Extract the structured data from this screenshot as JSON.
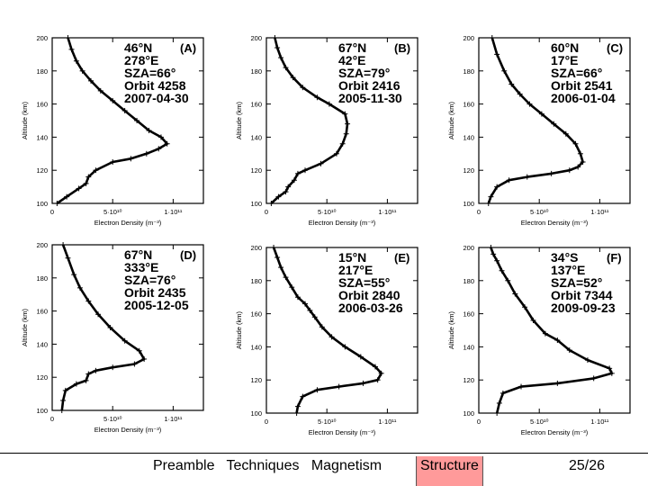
{
  "chart_data": [
    {
      "type": "line",
      "panel_label": "(A)",
      "annotation": [
        "46°N",
        "278°E",
        "SZA=66°",
        "Orbit 4258",
        "2007-04-30"
      ],
      "xlabel": "Electron Density (m⁻³)",
      "ylabel": "Altitude (km)",
      "xlim": [
        0,
        125000000000.0
      ],
      "ylim": [
        100,
        200
      ],
      "xticks": [
        {
          "v": 0,
          "t": "0"
        },
        {
          "v": 50000000000.0,
          "t": "5·10¹⁰"
        },
        {
          "v": 100000000000.0,
          "t": "1·10¹¹"
        }
      ],
      "yticks": [
        100,
        120,
        140,
        160,
        180,
        200
      ],
      "series": [
        {
          "x": [
            4000000000.0,
            12000000000.0,
            22000000000.0,
            28000000000.0,
            30000000000.0,
            36000000000.0,
            50000000000.0,
            65000000000.0,
            78000000000.0,
            88000000000.0,
            95000000000.0,
            90000000000.0,
            80000000000.0,
            70000000000.0,
            60000000000.0,
            50000000000.0,
            40000000000.0,
            32000000000.0,
            25000000000.0,
            20000000000.0,
            16000000000.0,
            13000000000.0
          ],
          "y": [
            100,
            104,
            109,
            112,
            116,
            120,
            125,
            127,
            130,
            133,
            136,
            140,
            144,
            150,
            156,
            162,
            168,
            174,
            180,
            186,
            193,
            200
          ]
        }
      ]
    },
    {
      "type": "line",
      "panel_label": "(B)",
      "annotation": [
        "67°N",
        "42°E",
        "SZA=79°",
        "Orbit 2416",
        "2005-11-30"
      ],
      "xlabel": "Electron Density (m⁻³)",
      "ylabel": "Altitude (km)",
      "xlim": [
        0,
        125000000000.0
      ],
      "ylim": [
        100,
        200
      ],
      "xticks": [
        {
          "v": 0,
          "t": "0"
        },
        {
          "v": 50000000000.0,
          "t": "5·10¹⁰"
        },
        {
          "v": 100000000000.0,
          "t": "1·10¹¹"
        }
      ],
      "yticks": [
        100,
        120,
        140,
        160,
        180,
        200
      ],
      "series": [
        {
          "x": [
            4000000000.0,
            10000000000.0,
            16000000000.0,
            18000000000.0,
            23000000000.0,
            26000000000.0,
            32000000000.0,
            45000000000.0,
            58000000000.0,
            63000000000.0,
            66000000000.0,
            67000000000.0,
            65000000000.0,
            52000000000.0,
            42000000000.0,
            30000000000.0,
            22000000000.0,
            16000000000.0,
            12000000000.0,
            9000000000.0,
            7000000000.0
          ],
          "y": [
            100,
            104,
            107,
            110,
            114,
            118,
            120,
            124,
            130,
            136,
            142,
            148,
            154,
            160,
            164,
            170,
            176,
            182,
            188,
            194,
            200
          ]
        }
      ]
    },
    {
      "type": "line",
      "panel_label": "(C)",
      "annotation": [
        "60°N",
        "17°E",
        "SZA=66°",
        "Orbit 2541",
        "2006-01-04"
      ],
      "xlabel": "Electron Density (m⁻³)",
      "ylabel": "Altitude (km)",
      "xlim": [
        0,
        125000000000.0
      ],
      "ylim": [
        100,
        200
      ],
      "xticks": [
        {
          "v": 0,
          "t": "0"
        },
        {
          "v": 50000000000.0,
          "t": "5·10¹⁰"
        },
        {
          "v": 100000000000.0,
          "t": "1·10¹¹"
        }
      ],
      "yticks": [
        100,
        120,
        140,
        160,
        180,
        200
      ],
      "series": [
        {
          "x": [
            8000000000.0,
            10000000000.0,
            15000000000.0,
            25000000000.0,
            40000000000.0,
            60000000000.0,
            75000000000.0,
            82000000000.0,
            86000000000.0,
            84000000000.0,
            80000000000.0,
            72000000000.0,
            62000000000.0,
            52000000000.0,
            42000000000.0,
            34000000000.0,
            27000000000.0,
            21000000000.0,
            15000000000.0,
            11000000000.0
          ],
          "y": [
            100,
            104,
            110,
            114,
            116,
            118,
            120,
            122,
            125,
            130,
            136,
            142,
            148,
            154,
            160,
            166,
            172,
            180,
            190,
            200
          ]
        }
      ]
    },
    {
      "type": "line",
      "panel_label": "(D)",
      "annotation": [
        "67°N",
        "333°E",
        "SZA=76°",
        "Orbit 2435",
        "2005-12-05"
      ],
      "xlabel": "Electron Density (m⁻³)",
      "ylabel": "Altitude (km)",
      "xlim": [
        0,
        125000000000.0
      ],
      "ylim": [
        100,
        200
      ],
      "xticks": [
        {
          "v": 0,
          "t": "0"
        },
        {
          "v": 50000000000.0,
          "t": "5·10¹⁰"
        },
        {
          "v": 100000000000.0,
          "t": "1·10¹¹"
        }
      ],
      "yticks": [
        100,
        120,
        140,
        160,
        180,
        200
      ],
      "series": [
        {
          "x": [
            8000000000.0,
            9000000000.0,
            11000000000.0,
            20000000000.0,
            28000000000.0,
            30000000000.0,
            36000000000.0,
            50000000000.0,
            68000000000.0,
            76000000000.0,
            72000000000.0,
            60000000000.0,
            48000000000.0,
            38000000000.0,
            30000000000.0,
            23000000000.0,
            18000000000.0,
            13000000000.0,
            9000000000.0
          ],
          "y": [
            100,
            106,
            112,
            116,
            118,
            122,
            124,
            126,
            128,
            131,
            136,
            142,
            150,
            158,
            166,
            174,
            182,
            192,
            200
          ]
        }
      ]
    },
    {
      "type": "line",
      "panel_label": "(E)",
      "annotation": [
        "15°N",
        "217°E",
        "SZA=55°",
        "Orbit 2840",
        "2006-03-26"
      ],
      "xlabel": "Electron Density (m⁻³)",
      "ylabel": "Altitude (km)",
      "xlim": [
        0,
        125000000000.0
      ],
      "ylim": [
        100,
        200
      ],
      "xticks": [
        {
          "v": 0,
          "t": "0"
        },
        {
          "v": 50000000000.0,
          "t": "5·10¹⁰"
        },
        {
          "v": 100000000000.0,
          "t": "1·10¹¹"
        }
      ],
      "yticks": [
        100,
        120,
        140,
        160,
        180,
        200
      ],
      "series": [
        {
          "x": [
            25000000000.0,
            26000000000.0,
            30000000000.0,
            42000000000.0,
            60000000000.0,
            80000000000.0,
            92000000000.0,
            95000000000.0,
            90000000000.0,
            78000000000.0,
            65000000000.0,
            54000000000.0,
            46000000000.0,
            40000000000.0,
            36000000000.0,
            32000000000.0,
            26000000000.0,
            21000000000.0,
            16000000000.0,
            12000000000.0,
            9000000000.0,
            6000000000.0
          ],
          "y": [
            100,
            104,
            110,
            114,
            116,
            118,
            120,
            124,
            128,
            134,
            140,
            146,
            152,
            158,
            162,
            166,
            170,
            176,
            182,
            188,
            194,
            200
          ]
        }
      ]
    },
    {
      "type": "line",
      "panel_label": "(F)",
      "annotation": [
        "34°S",
        "137°E",
        "SZA=52°",
        "Orbit 7344",
        "2009-09-23"
      ],
      "xlabel": "Electron Density (m⁻³)",
      "ylabel": "Altitude (km)",
      "xlim": [
        0,
        125000000000.0
      ],
      "ylim": [
        100,
        200
      ],
      "xticks": [
        {
          "v": 0,
          "t": "0"
        },
        {
          "v": 50000000000.0,
          "t": "5·10¹⁰"
        },
        {
          "v": 100000000000.0,
          "t": "1·10¹¹"
        }
      ],
      "yticks": [
        100,
        120,
        140,
        160,
        180,
        200
      ],
      "series": [
        {
          "x": [
            15000000000.0,
            17000000000.0,
            20000000000.0,
            35000000000.0,
            65000000000.0,
            95000000000.0,
            110000000000.0,
            108000000000.0,
            90000000000.0,
            75000000000.0,
            65000000000.0,
            55000000000.0,
            45000000000.0,
            38000000000.0,
            30000000000.0,
            24000000000.0,
            19000000000.0,
            15000000000.0,
            12000000000.0,
            10000000000.0
          ],
          "y": [
            100,
            106,
            112,
            116,
            118,
            121,
            124,
            127,
            132,
            138,
            144,
            148,
            156,
            164,
            172,
            180,
            186,
            192,
            196,
            200
          ]
        }
      ]
    }
  ],
  "footer": {
    "nav": [
      "Preamble",
      "Techniques",
      "Magnetism",
      "Structure"
    ],
    "active_nav": "Structure",
    "page": "25/26"
  },
  "colors": {
    "active_nav_bg": "#ff9a9a",
    "line": "#000000"
  }
}
